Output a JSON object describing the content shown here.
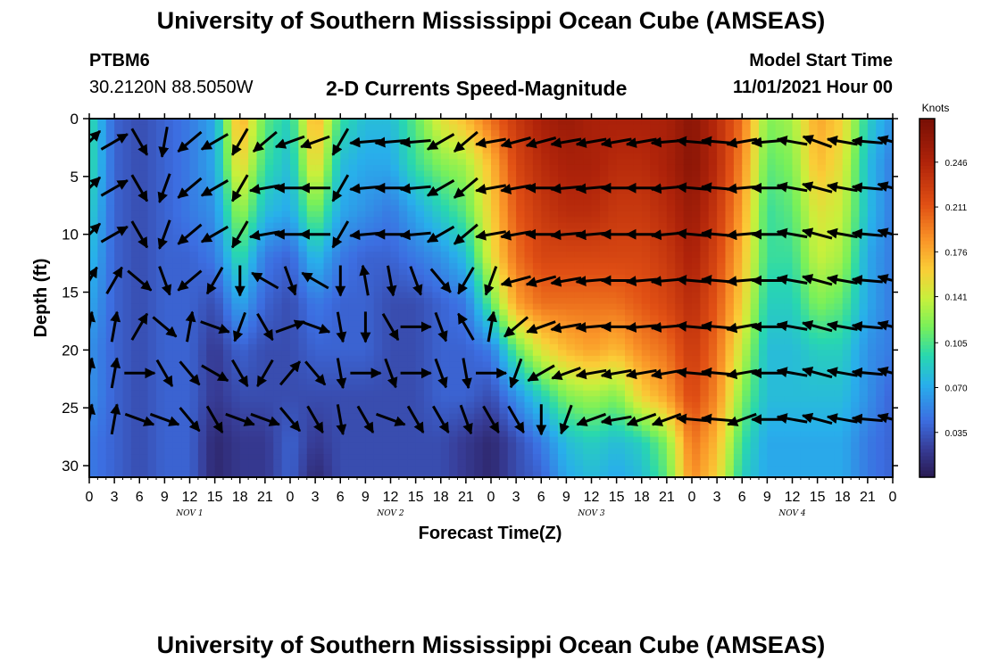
{
  "header": {
    "title": "University of Southern Mississippi Ocean Cube (AMSEAS)",
    "station_id": "PTBM6",
    "coords": "30.2120N  88.5050W",
    "subtitle": "2-D Currents Speed-Magnitude",
    "model_start_label": "Model Start Time",
    "model_start_value": "11/01/2021 Hour 00"
  },
  "footer": {
    "title": "University of Southern Mississippi Ocean Cube (AMSEAS)"
  },
  "chart_data": {
    "type": "heatmap",
    "title": "2-D Currents Speed-Magnitude",
    "xlabel": "Forecast Time(Z)",
    "ylabel": "Depth (ft)",
    "x_unit": "hours since 11/01/2021 00Z",
    "xlim": [
      0,
      96
    ],
    "ylim": [
      0,
      31
    ],
    "y_inverted": true,
    "x_ticks": [
      0,
      3,
      6,
      9,
      12,
      15,
      18,
      21,
      24,
      27,
      30,
      33,
      36,
      39,
      42,
      45,
      48,
      51,
      54,
      57,
      60,
      63,
      66,
      69,
      72,
      75,
      78,
      81,
      84,
      87,
      90,
      93,
      96
    ],
    "x_tick_labels": [
      "0",
      "3",
      "6",
      "9",
      "12",
      "15",
      "18",
      "21",
      "0",
      "3",
      "6",
      "9",
      "12",
      "15",
      "18",
      "21",
      "0",
      "3",
      "6",
      "9",
      "12",
      "15",
      "18",
      "21",
      "0",
      "3",
      "6",
      "9",
      "12",
      "15",
      "18",
      "21",
      "0"
    ],
    "y_ticks": [
      0,
      5,
      10,
      15,
      20,
      25,
      30
    ],
    "y_tick_labels": [
      "0",
      "5",
      "10",
      "15",
      "20",
      "25",
      "30"
    ],
    "day_labels": [
      {
        "x": 12,
        "text": "NOV 1"
      },
      {
        "x": 36,
        "text": "NOV 2"
      },
      {
        "x": 60,
        "text": "NOV 3"
      },
      {
        "x": 84,
        "text": "NOV 4"
      }
    ],
    "colorbar": {
      "unit": "Knots",
      "min": 0.0,
      "max": 0.28,
      "ticks": [
        0.035,
        0.07,
        0.105,
        0.141,
        0.176,
        0.211,
        0.246
      ],
      "tick_labels": [
        "0.035",
        "0.070",
        "0.105",
        "0.141",
        "0.176",
        "0.211",
        "0.246"
      ]
    },
    "speed_times": [
      0,
      3,
      6,
      9,
      12,
      15,
      18,
      21,
      24,
      27,
      30,
      33,
      36,
      39,
      42,
      45,
      48,
      51,
      54,
      57,
      60,
      63,
      66,
      69,
      72,
      75,
      78,
      81,
      84,
      87,
      90,
      93,
      96
    ],
    "speed_depths": [
      0,
      4,
      8,
      12,
      16,
      20,
      24,
      28,
      31
    ],
    "speed_knots": [
      [
        0.1,
        0.04,
        0.03,
        0.04,
        0.05,
        0.07,
        0.18,
        0.11,
        0.09,
        0.18,
        0.1,
        0.08,
        0.08,
        0.11,
        0.15,
        0.17,
        0.2,
        0.23,
        0.25,
        0.26,
        0.25,
        0.25,
        0.25,
        0.25,
        0.27,
        0.24,
        0.2,
        0.12,
        0.13,
        0.18,
        0.16,
        0.09,
        0.06
      ],
      [
        0.1,
        0.04,
        0.03,
        0.04,
        0.05,
        0.07,
        0.16,
        0.1,
        0.08,
        0.16,
        0.08,
        0.07,
        0.07,
        0.1,
        0.12,
        0.13,
        0.17,
        0.22,
        0.24,
        0.25,
        0.25,
        0.24,
        0.24,
        0.25,
        0.27,
        0.24,
        0.19,
        0.11,
        0.12,
        0.17,
        0.15,
        0.08,
        0.05
      ],
      [
        0.09,
        0.04,
        0.03,
        0.04,
        0.05,
        0.06,
        0.13,
        0.08,
        0.07,
        0.12,
        0.07,
        0.06,
        0.05,
        0.07,
        0.09,
        0.11,
        0.16,
        0.21,
        0.23,
        0.24,
        0.24,
        0.23,
        0.23,
        0.24,
        0.26,
        0.23,
        0.18,
        0.1,
        0.11,
        0.15,
        0.14,
        0.08,
        0.05
      ],
      [
        0.08,
        0.04,
        0.03,
        0.04,
        0.04,
        0.05,
        0.1,
        0.05,
        0.04,
        0.08,
        0.05,
        0.04,
        0.04,
        0.05,
        0.06,
        0.08,
        0.15,
        0.2,
        0.22,
        0.22,
        0.22,
        0.22,
        0.22,
        0.23,
        0.25,
        0.22,
        0.17,
        0.1,
        0.1,
        0.14,
        0.13,
        0.07,
        0.05
      ],
      [
        0.07,
        0.04,
        0.03,
        0.04,
        0.04,
        0.03,
        0.07,
        0.04,
        0.03,
        0.05,
        0.04,
        0.04,
        0.03,
        0.03,
        0.04,
        0.05,
        0.11,
        0.18,
        0.2,
        0.2,
        0.2,
        0.2,
        0.21,
        0.22,
        0.24,
        0.21,
        0.16,
        0.09,
        0.09,
        0.12,
        0.11,
        0.07,
        0.05
      ],
      [
        0.06,
        0.04,
        0.03,
        0.04,
        0.04,
        0.02,
        0.04,
        0.03,
        0.03,
        0.04,
        0.04,
        0.04,
        0.03,
        0.03,
        0.04,
        0.04,
        0.05,
        0.11,
        0.15,
        0.17,
        0.18,
        0.17,
        0.19,
        0.2,
        0.23,
        0.2,
        0.14,
        0.08,
        0.08,
        0.09,
        0.09,
        0.06,
        0.05
      ],
      [
        0.06,
        0.04,
        0.03,
        0.04,
        0.04,
        0.02,
        0.03,
        0.03,
        0.03,
        0.03,
        0.03,
        0.03,
        0.03,
        0.03,
        0.04,
        0.04,
        0.03,
        0.06,
        0.09,
        0.12,
        0.13,
        0.12,
        0.16,
        0.18,
        0.22,
        0.19,
        0.12,
        0.08,
        0.08,
        0.08,
        0.08,
        0.06,
        0.04
      ],
      [
        0.05,
        0.04,
        0.03,
        0.04,
        0.04,
        0.01,
        0.02,
        0.02,
        0.04,
        0.02,
        0.03,
        0.03,
        0.03,
        0.03,
        0.03,
        0.02,
        0.01,
        0.03,
        0.05,
        0.08,
        0.09,
        0.08,
        0.09,
        0.12,
        0.2,
        0.17,
        0.1,
        0.07,
        0.07,
        0.07,
        0.07,
        0.05,
        0.04
      ],
      [
        0.05,
        0.04,
        0.03,
        0.04,
        0.04,
        0.01,
        0.02,
        0.02,
        0.04,
        0.01,
        0.03,
        0.03,
        0.03,
        0.03,
        0.03,
        0.02,
        0.01,
        0.03,
        0.04,
        0.07,
        0.08,
        0.07,
        0.08,
        0.11,
        0.19,
        0.16,
        0.09,
        0.07,
        0.07,
        0.07,
        0.07,
        0.05,
        0.04
      ]
    ],
    "vector_times": [
      0,
      3,
      6,
      9,
      12,
      15,
      18,
      21,
      24,
      27,
      30,
      33,
      36,
      39,
      42,
      45,
      48,
      51,
      54,
      57,
      60,
      63,
      66,
      69,
      72,
      75,
      78,
      81,
      84,
      87,
      90,
      93,
      96
    ],
    "vector_depths": [
      2,
      6,
      10,
      14,
      18,
      22,
      26
    ],
    "vector_direction_deg": [
      [
        45,
        60,
        150,
        190,
        230,
        240,
        210,
        230,
        250,
        250,
        210,
        265,
        265,
        265,
        240,
        230,
        260,
        255,
        255,
        260,
        260,
        260,
        260,
        265,
        275,
        275,
        260,
        265,
        280,
        290,
        280,
        275,
        285
      ],
      [
        45,
        60,
        150,
        200,
        230,
        240,
        210,
        260,
        270,
        270,
        210,
        265,
        270,
        265,
        240,
        230,
        260,
        260,
        270,
        265,
        265,
        270,
        270,
        265,
        275,
        275,
        265,
        270,
        280,
        285,
        280,
        275,
        285
      ],
      [
        45,
        60,
        150,
        200,
        230,
        240,
        210,
        260,
        270,
        270,
        210,
        265,
        270,
        265,
        240,
        230,
        260,
        260,
        270,
        265,
        265,
        270,
        270,
        265,
        275,
        275,
        265,
        270,
        280,
        285,
        280,
        275,
        285
      ],
      [
        30,
        30,
        130,
        160,
        230,
        210,
        180,
        300,
        160,
        300,
        180,
        350,
        170,
        160,
        140,
        210,
        200,
        255,
        255,
        260,
        265,
        270,
        265,
        265,
        275,
        275,
        265,
        270,
        280,
        285,
        280,
        275,
        285
      ],
      [
        10,
        10,
        30,
        130,
        10,
        110,
        200,
        150,
        70,
        110,
        170,
        180,
        150,
        90,
        160,
        330,
        10,
        230,
        250,
        260,
        265,
        270,
        265,
        265,
        275,
        275,
        260,
        270,
        280,
        285,
        280,
        275,
        285
      ],
      [
        10,
        10,
        90,
        150,
        140,
        120,
        150,
        210,
        40,
        140,
        170,
        90,
        160,
        90,
        160,
        170,
        90,
        200,
        240,
        250,
        260,
        260,
        260,
        260,
        275,
        275,
        260,
        270,
        280,
        285,
        280,
        275,
        285
      ],
      [
        10,
        10,
        110,
        110,
        140,
        150,
        110,
        110,
        140,
        150,
        170,
        150,
        110,
        150,
        150,
        160,
        150,
        150,
        180,
        200,
        250,
        260,
        250,
        250,
        275,
        275,
        250,
        270,
        280,
        285,
        280,
        275,
        285
      ]
    ]
  }
}
